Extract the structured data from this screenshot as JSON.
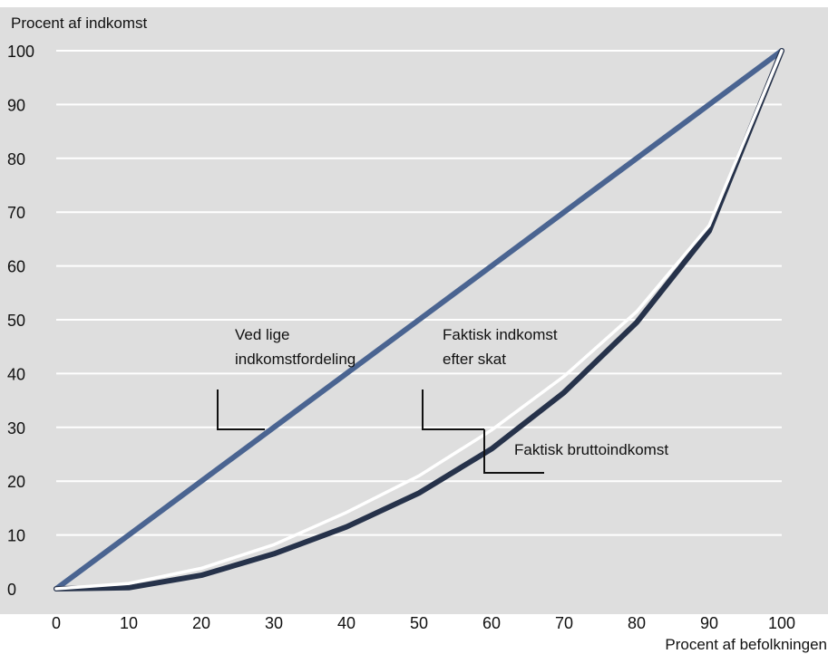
{
  "chart_data": {
    "type": "line",
    "title": "",
    "xlabel": "Procent af befolkningen",
    "ylabel": "Procent af indkomst",
    "xlim": [
      0,
      100
    ],
    "ylim": [
      0,
      100
    ],
    "x_ticks": [
      "0",
      "10",
      "20",
      "30",
      "40",
      "50",
      "60",
      "70",
      "80",
      "90",
      "100"
    ],
    "y_ticks": [
      "0",
      "10",
      "20",
      "30",
      "40",
      "50",
      "60",
      "70",
      "80",
      "90",
      "100"
    ],
    "grid": true,
    "x": [
      0,
      10,
      20,
      30,
      40,
      50,
      60,
      70,
      80,
      90,
      100
    ],
    "series": [
      {
        "name": "Ved lige indkomstfordeling",
        "color": "#4a6491",
        "values": [
          0,
          10,
          20,
          30,
          40,
          50,
          60,
          70,
          80,
          90,
          100
        ]
      },
      {
        "name": "Faktisk indkomst efter skat",
        "color": "#ffffff",
        "values": [
          0,
          1,
          3.8,
          8.2,
          14.2,
          21,
          29.5,
          39.5,
          51.5,
          67.5,
          100
        ]
      },
      {
        "name": "Faktisk bruttoindkomst",
        "color": "#26324a",
        "values": [
          0,
          0.2,
          2.5,
          6.5,
          11.5,
          17.8,
          26,
          36.5,
          49.5,
          66.5,
          100
        ]
      }
    ],
    "annotations": [
      {
        "lines": [
          "Ved lige",
          "indkomstfordeling"
        ]
      },
      {
        "lines": [
          "Faktisk indkomst",
          "efter skat"
        ]
      },
      {
        "lines": [
          "Faktisk bruttoindkomst"
        ]
      }
    ],
    "colors": {
      "plot_background": "#dedede",
      "gridline": "#ffffff"
    }
  }
}
